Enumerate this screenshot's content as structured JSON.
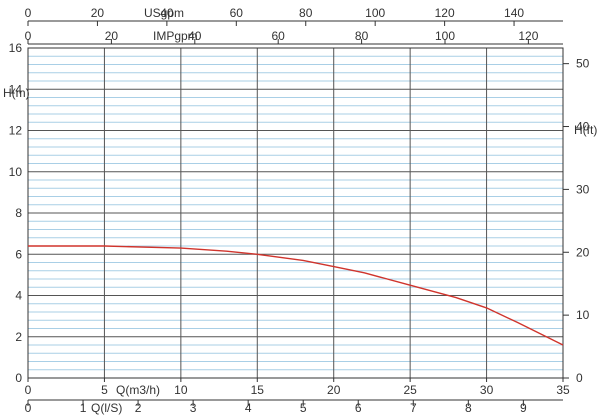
{
  "chart_data": {
    "type": "line",
    "title": "",
    "x_axis": {
      "label": "Q(m3/h)",
      "range": [
        0,
        35
      ],
      "ticks": [
        0,
        5,
        10,
        15,
        20,
        25,
        30,
        35
      ]
    },
    "y_axis_left": {
      "label": "H(m)",
      "range": [
        0,
        16
      ],
      "ticks": [
        0,
        2,
        4,
        6,
        8,
        10,
        12,
        14,
        16
      ]
    },
    "y_axis_right": {
      "label": "H(ft)",
      "range": [
        0,
        52.49
      ],
      "ticks": [
        0,
        10,
        20,
        30,
        40,
        50
      ]
    },
    "x_axis_bottom2": {
      "label": "Q(l/S)",
      "range": [
        0,
        9.72
      ],
      "ticks": [
        0,
        1,
        2,
        3,
        4,
        5,
        6,
        7,
        8,
        9
      ]
    },
    "x_axis_top1": {
      "label": "USgpm",
      "range": [
        0,
        154.1
      ],
      "ticks": [
        0,
        20,
        40,
        60,
        80,
        100,
        120,
        140
      ]
    },
    "x_axis_top2": {
      "label": "IMPgpm",
      "range": [
        0,
        128.3
      ],
      "ticks": [
        0,
        20,
        40,
        60,
        80,
        100,
        120
      ]
    },
    "grid": true,
    "series": [
      {
        "name": "",
        "color": "#d0342c",
        "x": [
          0,
          5,
          10,
          13,
          15,
          18,
          20,
          22,
          25,
          28,
          30,
          32,
          35
        ],
        "y": [
          6.4,
          6.4,
          6.3,
          6.15,
          6.0,
          5.7,
          5.4,
          5.1,
          4.5,
          3.9,
          3.4,
          2.7,
          1.6
        ]
      }
    ]
  }
}
